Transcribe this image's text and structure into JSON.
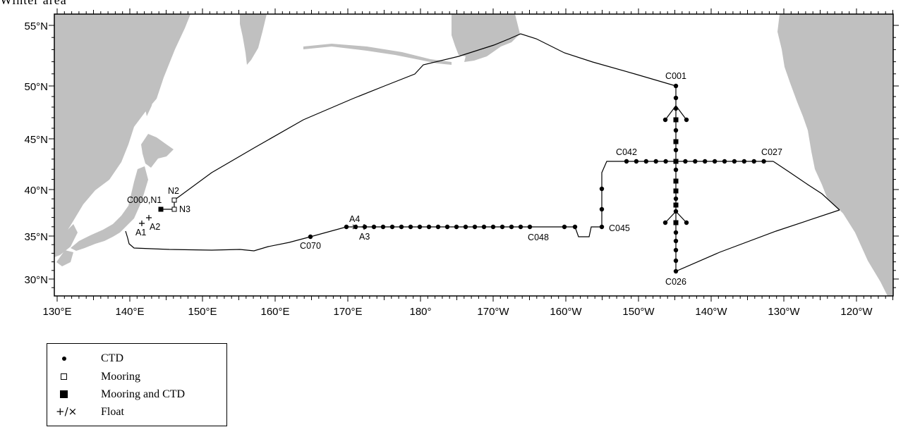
{
  "header_fragment": "Winter area",
  "map": {
    "lon_ticks": [
      "130°E",
      "140°E",
      "150°E",
      "160°E",
      "170°E",
      "180°",
      "170°W",
      "160°W",
      "150°W",
      "140°W",
      "130°W",
      "120°W"
    ],
    "lat_ticks": [
      "55°N",
      "50°N",
      "45°N",
      "40°N",
      "35°N",
      "30°N"
    ],
    "land_color": "#c0c0c0",
    "station_labels": {
      "c001": "C001",
      "c042": "C042",
      "c027": "C027",
      "c045": "C045",
      "c048": "C048",
      "c070": "C070",
      "c026": "C026",
      "a1": "A1",
      "a2": "A2",
      "a3": "A3",
      "a4": "A4",
      "n1": "C000,N1",
      "n2": "N2",
      "n3": "N3"
    }
  },
  "legend": {
    "items": [
      {
        "symbol": "filled-circle",
        "label": "CTD"
      },
      {
        "symbol": "open-square",
        "label": "Mooring"
      },
      {
        "symbol": "filled-square",
        "label": "Mooring and CTD"
      },
      {
        "symbol": "plus-cross",
        "symbol_text": "+/×",
        "label": "Float"
      }
    ]
  }
}
